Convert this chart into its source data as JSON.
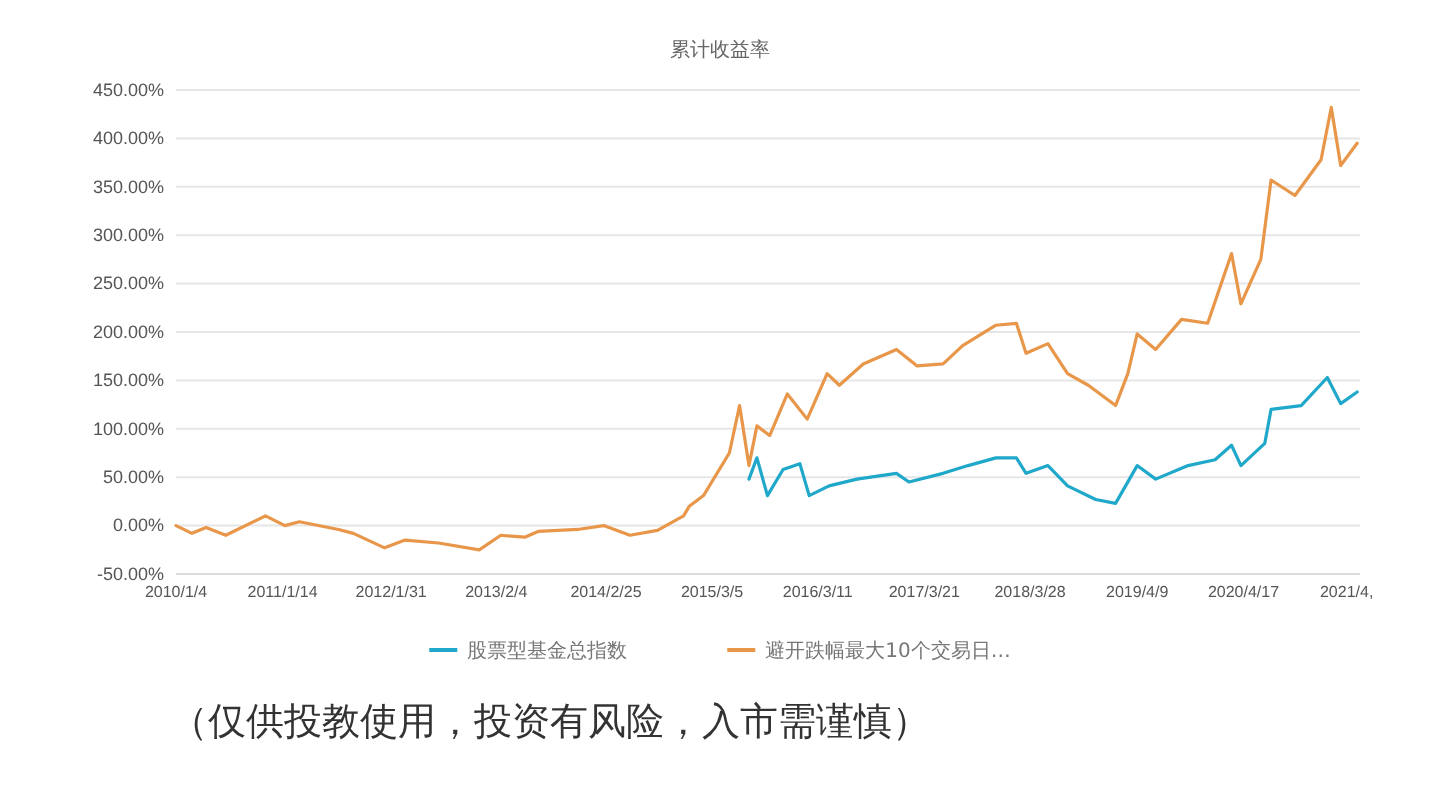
{
  "chart_data": {
    "type": "line",
    "title": "累计收益率",
    "xlim": [
      "2010-01-04",
      "2021-06-01"
    ],
    "xticks": [
      {
        "value": "2010-01-04",
        "label": "2010/1/4"
      },
      {
        "value": "2011-01-14",
        "label": "2011/1/14"
      },
      {
        "value": "2012-01-31",
        "label": "2012/1/31"
      },
      {
        "value": "2013-02-04",
        "label": "2013/2/4"
      },
      {
        "value": "2014-02-25",
        "label": "2014/2/25"
      },
      {
        "value": "2015-03-05",
        "label": "2015/3/5"
      },
      {
        "value": "2016-03-11",
        "label": "2016/3/11"
      },
      {
        "value": "2017-03-21",
        "label": "2017/3/21"
      },
      {
        "value": "2018-03-28",
        "label": "2018/3/28"
      },
      {
        "value": "2019-04-09",
        "label": "2019/4/9"
      },
      {
        "value": "2020-04-17",
        "label": "2020/4/17"
      },
      {
        "value": "2021-04-15",
        "label": "2021/4,"
      }
    ],
    "ylim": [
      -50,
      450
    ],
    "yticks": [
      {
        "value": -50,
        "label": "-50.00%"
      },
      {
        "value": 0,
        "label": "0.00%"
      },
      {
        "value": 50,
        "label": "50.00%"
      },
      {
        "value": 100,
        "label": "100.00%"
      },
      {
        "value": 150,
        "label": "150.00%"
      },
      {
        "value": 200,
        "label": "200.00%"
      },
      {
        "value": 250,
        "label": "250.00%"
      },
      {
        "value": 300,
        "label": "300.00%"
      },
      {
        "value": 350,
        "label": "350.00%"
      },
      {
        "value": 400,
        "label": "400.00%"
      },
      {
        "value": 450,
        "label": "450.00%"
      }
    ],
    "grid": "y",
    "legend": "bottom",
    "marker": "none",
    "line_style": "solid",
    "series": [
      {
        "name": "股票型基金总指数",
        "color": "#1fa8c9",
        "x": [
          "2015-07-13",
          "2015-08-10",
          "2015-09-16",
          "2015-11-10",
          "2016-01-08",
          "2016-02-10",
          "2016-04-20",
          "2016-07-27",
          "2016-12-13",
          "2017-01-26",
          "2017-05-26",
          "2017-08-22",
          "2017-11-28",
          "2018-02-08",
          "2018-03-14",
          "2018-05-30",
          "2018-08-07",
          "2018-11-14",
          "2019-01-23",
          "2019-04-09",
          "2019-06-13",
          "2019-10-05",
          "2020-01-08",
          "2020-03-06",
          "2020-04-08",
          "2020-07-01",
          "2020-07-23",
          "2020-11-06",
          "2021-02-06",
          "2021-03-25",
          "2021-05-22"
        ],
        "values": [
          48,
          70,
          31,
          58,
          64,
          31,
          41,
          48,
          54,
          45,
          54,
          62,
          70,
          70,
          54,
          62,
          41,
          27,
          23,
          62,
          48,
          62,
          68,
          83,
          62,
          85,
          120,
          124,
          153,
          126,
          138
        ]
      },
      {
        "name": "避开跌幅最大10个交易日…",
        "color": "#e8974a",
        "x": [
          "2010-01-04",
          "2010-03-01",
          "2010-04-20",
          "2010-06-28",
          "2010-11-15",
          "2011-01-22",
          "2011-03-14",
          "2011-07-30",
          "2011-09-20",
          "2012-01-08",
          "2012-03-20",
          "2012-07-16",
          "2012-12-06",
          "2013-02-20",
          "2013-05-15",
          "2013-07-01",
          "2013-11-17",
          "2014-02-17",
          "2014-05-20",
          "2014-08-25",
          "2014-11-25",
          "2014-12-15",
          "2015-02-03",
          "2015-05-05",
          "2015-06-10",
          "2015-07-13",
          "2015-08-10",
          "2015-09-24",
          "2015-11-25",
          "2016-02-03",
          "2016-04-13",
          "2016-05-26",
          "2016-08-18",
          "2016-12-13",
          "2017-02-24",
          "2017-05-26",
          "2017-08-03",
          "2017-11-28",
          "2018-02-08",
          "2018-03-14",
          "2018-05-30",
          "2018-08-07",
          "2018-10-19",
          "2019-01-23",
          "2019-03-07",
          "2019-04-09",
          "2019-06-13",
          "2019-09-12",
          "2019-12-13",
          "2020-03-06",
          "2020-04-08",
          "2020-06-17",
          "2020-07-23",
          "2020-10-15",
          "2021-01-15",
          "2021-02-20",
          "2021-03-25",
          "2021-05-22"
        ],
        "values": [
          0,
          -8,
          -2,
          -10,
          10,
          0,
          4,
          -4,
          -8,
          -23,
          -15,
          -18,
          -25,
          -10,
          -12,
          -6,
          -4,
          0,
          -10,
          -5,
          10,
          20,
          31,
          75,
          124,
          62,
          103,
          93,
          136,
          110,
          157,
          145,
          167,
          182,
          165,
          167,
          186,
          207,
          209,
          178,
          188,
          157,
          145,
          124,
          157,
          198,
          182,
          213,
          209,
          281,
          229,
          275,
          357,
          341,
          378,
          432,
          372,
          395
        ]
      }
    ],
    "annotations": [
      "（仅供投教使用，投资有风险，入市需谨慎）"
    ]
  }
}
